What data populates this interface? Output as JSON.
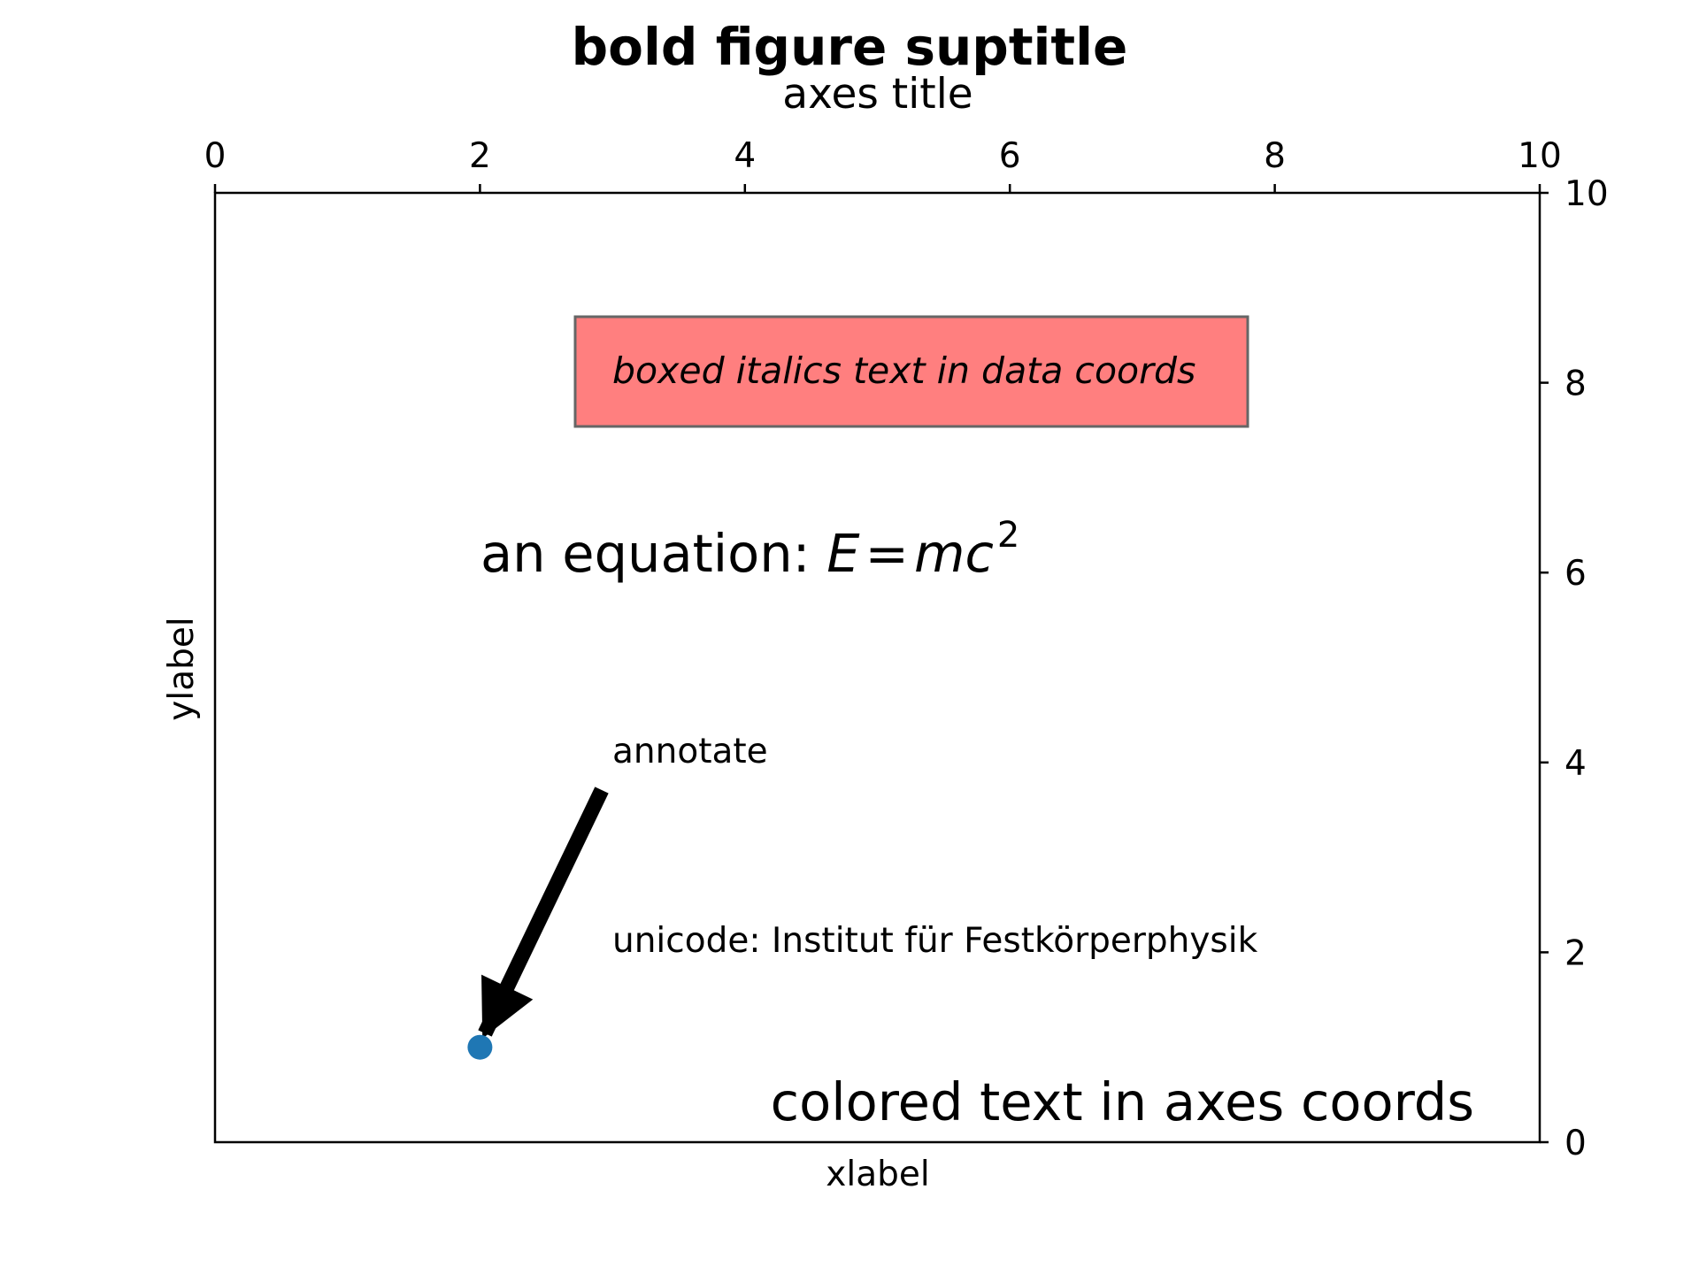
{
  "chart_data": {
    "type": "scatter",
    "title": "axes title",
    "suptitle": "bold figure suptitle",
    "xlabel": "xlabel",
    "ylabel": "ylabel",
    "xlim": [
      0,
      10
    ],
    "ylim": [
      0,
      10
    ],
    "xticks": [
      "0",
      "2",
      "4",
      "6",
      "8",
      "10"
    ],
    "yticks": [
      "0",
      "2",
      "4",
      "6",
      "8",
      "10"
    ],
    "x_axis_side": "top",
    "y_axis_side": "right",
    "grid": false,
    "series": [
      {
        "x": [
          2
        ],
        "y": [
          1
        ],
        "color": "#1f77b4"
      }
    ],
    "annotations": {
      "boxed": {
        "text": "boxed italics text in data coords",
        "x": 3,
        "y": 8,
        "box_color": "#ff7f7f"
      },
      "equation": {
        "prefix": "an equation: ",
        "E": "E",
        "eq": "=",
        "mc": "mc",
        "exp": "2",
        "x": 2,
        "y": 6
      },
      "arrow": {
        "text": "annotate",
        "x": 3,
        "y": 4,
        "target_x": 2,
        "target_y": 1
      },
      "unicode": {
        "text": "unicode: Institut für Festkörperphysik",
        "x": 3,
        "y": 2
      },
      "colored": {
        "text": "colored text in axes coords",
        "color": "#008000"
      }
    }
  }
}
